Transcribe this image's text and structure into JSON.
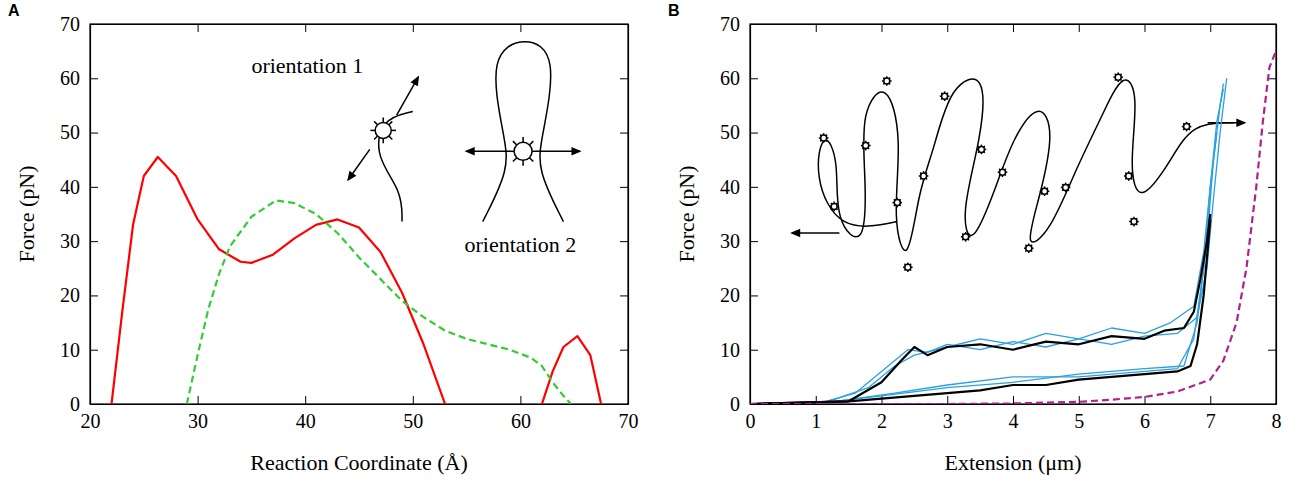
{
  "chart_data": [
    {
      "type": "line",
      "title": "A",
      "xlabel": "Reaction Coordinate (Å)",
      "ylabel": "Force (pN)",
      "annotations": [
        "orientation 1",
        "orientation 2"
      ],
      "xlim": [
        20,
        70
      ],
      "xticks": [
        20,
        30,
        40,
        50,
        60,
        70
      ],
      "ylim": [
        0,
        70
      ],
      "yticks": [
        0,
        10,
        20,
        30,
        40,
        50,
        60,
        70
      ],
      "series": [
        {
          "color": "#ff0000",
          "line_style": "solid",
          "x": [
            22,
            23,
            24,
            25,
            26.3,
            28,
            30,
            32,
            34,
            35,
            37,
            39,
            41,
            43,
            45,
            47,
            49,
            51,
            53,
            57.5,
            62,
            63,
            64,
            65.3,
            66.5,
            67.5
          ],
          "values": [
            0,
            17,
            33,
            42,
            45.5,
            42,
            34,
            28.5,
            26.2,
            26,
            27.5,
            30.5,
            33,
            34,
            32.5,
            28,
            20.5,
            11,
            0,
            null,
            0,
            6,
            10.5,
            12.5,
            9,
            0
          ]
        },
        {
          "color": "#33cc33",
          "line_style": "dashed",
          "x": [
            29,
            30,
            31,
            32,
            33,
            35,
            37.3,
            39,
            41,
            43,
            45,
            47,
            49,
            51,
            53,
            55,
            57,
            59,
            61,
            62,
            63,
            64,
            64.7
          ],
          "values": [
            0,
            9,
            17.5,
            24,
            29,
            34.5,
            37.5,
            37,
            35,
            31.5,
            27,
            23,
            19,
            16,
            13.5,
            12,
            11,
            10,
            8.5,
            7,
            4,
            1.5,
            0
          ]
        }
      ]
    },
    {
      "type": "line",
      "title": "B",
      "xlabel": "Extension (μm)",
      "ylabel": "Force (pN)",
      "xlim": [
        0,
        8
      ],
      "xticks": [
        0,
        1,
        2,
        3,
        4,
        5,
        6,
        7,
        8
      ],
      "ylim": [
        0,
        70
      ],
      "yticks": [
        0,
        10,
        20,
        30,
        40,
        50,
        60,
        70
      ],
      "series": [
        {
          "color": "#2aa0e2",
          "line_style": "solid",
          "x": [
            0,
            1.1,
            1.6,
            2.0,
            2.4,
            2.7,
            3.0,
            3.5,
            4.0,
            4.5,
            5.0,
            5.5,
            6.0,
            6.5,
            6.8,
            6.95,
            7.05,
            7.15,
            7.25
          ],
          "values": [
            0,
            0.3,
            2,
            6,
            10,
            9.5,
            11,
            10,
            11.5,
            10.5,
            12,
            11,
            12.5,
            13,
            16,
            25,
            38,
            50,
            60
          ]
        },
        {
          "color": "#2aa0e2",
          "line_style": "solid",
          "x": [
            0,
            1.2,
            1.8,
            2.2,
            2.5,
            3,
            3.5,
            4,
            4.5,
            5,
            5.5,
            6,
            6.4,
            6.75,
            6.9,
            7.0,
            7.1,
            7.2
          ],
          "values": [
            0,
            0.5,
            3,
            7,
            9,
            10.5,
            12,
            11,
            13,
            12,
            14,
            13,
            15,
            18,
            28,
            40,
            52,
            58
          ]
        },
        {
          "color": "#2aa0e2",
          "line_style": "solid",
          "x": [
            0,
            1.1,
            2,
            3,
            4,
            5,
            6,
            6.6,
            6.8,
            6.95,
            7.05,
            7.15,
            7.2
          ],
          "values": [
            0,
            0.2,
            1.5,
            3,
            4,
            5.5,
            6.5,
            7,
            15,
            30,
            45,
            55,
            59
          ]
        },
        {
          "color": "#2aa0e2",
          "line_style": "solid",
          "x": [
            0,
            1.3,
            2.2,
            3,
            4,
            5,
            6,
            6.5,
            6.75,
            6.9,
            7.0,
            7.1
          ],
          "values": [
            0,
            0.5,
            2,
            3.5,
            5,
            5,
            6,
            6.5,
            12,
            25,
            40,
            50
          ]
        },
        {
          "color": "#000000",
          "line_style": "solid",
          "x": [
            0,
            1.5,
            2,
            2.3,
            2.5,
            2.7,
            3,
            3.5,
            4,
            4.5,
            5,
            5.5,
            6,
            6.3,
            6.6,
            6.75,
            6.85,
            6.95,
            7.0
          ],
          "values": [
            0,
            0.5,
            4,
            8,
            10.5,
            9,
            10.5,
            11,
            10,
            11.5,
            11,
            12.5,
            12,
            13.5,
            14,
            17,
            23,
            30,
            35
          ]
        },
        {
          "color": "#000000",
          "line_style": "solid",
          "x": [
            0,
            1.5,
            2,
            3,
            3.5,
            4,
            4.5,
            5,
            5.5,
            6,
            6.5,
            6.7,
            6.8,
            6.9,
            6.95,
            7.0
          ],
          "values": [
            0,
            0.5,
            1,
            2,
            2.5,
            3.5,
            3.5,
            4.5,
            5,
            5.5,
            6,
            7,
            11,
            20,
            27,
            34
          ]
        },
        {
          "color": "#b0208e",
          "line_style": "dashed",
          "x": [
            0,
            3,
            4,
            5,
            5.5,
            6,
            6.5,
            7,
            7.2,
            7.4,
            7.55,
            7.7,
            7.8,
            7.9,
            8
          ],
          "values": [
            0,
            0,
            0.1,
            0.4,
            0.8,
            1.3,
            2.3,
            4.5,
            8,
            15,
            25,
            40,
            52,
            62,
            65
          ]
        }
      ]
    }
  ]
}
